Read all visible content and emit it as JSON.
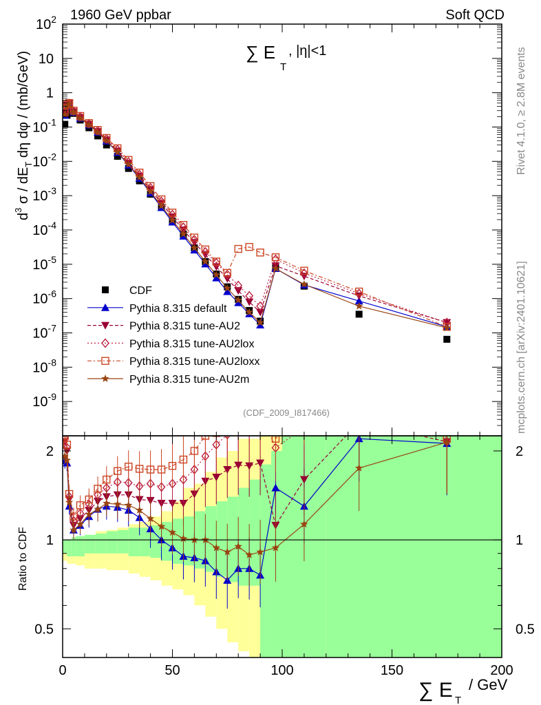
{
  "header": {
    "left": "1960 GeV ppbar",
    "right": "Soft QCD"
  },
  "side": {
    "rivet": "Rivet 4.1.0, ≥ 2.8M events",
    "mcplots": "mcplots.cern.ch [arXiv:2401.10621]"
  },
  "chart_data": {
    "type": "line",
    "title": "∑ E_T, |η|<1",
    "title_main": "∑ E",
    "title_sub": "T",
    "title_rest": ", |η|<1",
    "ylabel": "d³σ / dE_T dη dφ / (mb/GeV)",
    "ylabel_parts": [
      "d",
      "3",
      " σ / dE",
      "T",
      " dη dφ / (mb/GeV)"
    ],
    "xlabel_main": "∑ E",
    "xlabel_sub": "T",
    "xlabel_rest": "/ GeV",
    "ratio_ylabel": "Ratio to CDF",
    "analysis": "(CDF_2009_I817466)",
    "xlim": [
      0,
      200
    ],
    "ylim": [
      1e-10,
      100
    ],
    "ratio_ylim": [
      0.4,
      2.25
    ],
    "x_ticks": [
      "0",
      "50",
      "100",
      "150",
      "200"
    ],
    "y_ticks": [
      "10^2",
      "10",
      "1",
      "10^-1",
      "10^-2",
      "10^-3",
      "10^-4",
      "10^-5",
      "10^-6",
      "10^-7",
      "10^-8",
      "10^-9"
    ],
    "ratio_ticks": [
      "0.5",
      "1",
      "2"
    ],
    "colors": {
      "cdf": "#000000",
      "default": "#0000cc",
      "au2": "#990033",
      "au2lox": "#bb2244",
      "au2loxx": "#cc4422",
      "au2m": "#994411",
      "band_yellow": "#ffff99",
      "band_green": "#99ff99"
    },
    "series": [
      {
        "name": "CDF",
        "key": "cdf",
        "x": [
          1,
          2,
          3,
          5,
          8,
          12,
          16,
          20,
          25,
          30,
          35,
          40,
          45,
          50,
          55,
          60,
          65,
          70,
          75,
          80,
          85,
          90,
          97,
          110,
          135,
          175
        ],
        "y": [
          0.12,
          0.22,
          0.35,
          0.25,
          0.16,
          0.095,
          0.055,
          0.03,
          0.014,
          0.0062,
          0.0027,
          0.0011,
          0.00045,
          0.00018,
          7.5e-05,
          3e-05,
          1.2e-05,
          5.2e-06,
          2.2e-06,
          9.5e-07,
          4.5e-07,
          2.2e-07,
          8e-06,
          2.3e-06,
          3.5e-07,
          6.5e-08
        ]
      },
      {
        "name": "Pythia 8.315 default",
        "key": "default",
        "x": [
          1,
          2,
          3,
          5,
          8,
          12,
          16,
          20,
          25,
          30,
          35,
          40,
          45,
          50,
          55,
          60,
          65,
          70,
          75,
          80,
          85,
          90,
          97,
          110,
          135,
          175
        ],
        "y": [
          0.22,
          0.4,
          0.46,
          0.27,
          0.18,
          0.115,
          0.07,
          0.039,
          0.018,
          0.0078,
          0.0032,
          0.0012,
          0.00045,
          0.00017,
          6.6e-05,
          2.6e-05,
          1.02e-05,
          4e-06,
          1.6e-06,
          7.6e-07,
          3.6e-07,
          1.7e-07,
          7.5e-06,
          2.5e-06,
          8.5e-07,
          1.5e-07
        ]
      },
      {
        "name": "Pythia 8.315 tune-AU2",
        "key": "au2",
        "x": [
          1,
          2,
          3,
          5,
          8,
          12,
          16,
          20,
          25,
          30,
          35,
          40,
          45,
          50,
          55,
          60,
          65,
          70,
          75,
          80,
          85,
          90,
          97,
          110,
          135,
          175
        ],
        "y": [
          0.26,
          0.44,
          0.48,
          0.28,
          0.19,
          0.12,
          0.074,
          0.042,
          0.02,
          0.0088,
          0.0037,
          0.0015,
          0.0006,
          0.00024,
          0.0001,
          4.3e-05,
          1.9e-05,
          8.5e-06,
          3.8e-06,
          1.7e-06,
          8e-07,
          4e-07,
          9e-06,
          4.5e-06,
          1.2e-06,
          2e-07
        ]
      },
      {
        "name": "Pythia 8.315 tune-AU2lox",
        "key": "au2lox",
        "x": [
          1,
          2,
          3,
          5,
          8,
          12,
          16,
          20,
          25,
          30,
          35,
          40,
          45,
          50,
          55,
          60,
          65,
          70,
          75,
          80,
          85,
          90,
          97,
          110,
          135,
          175
        ],
        "y": [
          0.27,
          0.45,
          0.49,
          0.29,
          0.2,
          0.125,
          0.078,
          0.045,
          0.022,
          0.0097,
          0.0041,
          0.0017,
          0.00068,
          0.00028,
          0.00012,
          5.2e-05,
          2.3e-05,
          1.1e-05,
          5e-06,
          2.4e-06,
          1.2e-06,
          6e-07,
          1.4e-05,
          5.5e-06,
          1.4e-06,
          2e-07
        ]
      },
      {
        "name": "Pythia 8.315 tune-AU2loxx",
        "key": "au2loxx",
        "x": [
          1,
          2,
          3,
          5,
          8,
          12,
          16,
          20,
          25,
          30,
          35,
          40,
          45,
          50,
          55,
          60,
          65,
          70,
          75,
          80,
          85,
          90,
          97,
          110,
          135,
          175
        ],
        "y": [
          0.27,
          0.46,
          0.5,
          0.3,
          0.21,
          0.13,
          0.082,
          0.048,
          0.024,
          0.011,
          0.0047,
          0.0019,
          0.00078,
          0.00032,
          0.00014,
          6e-05,
          2.7e-05,
          1.2e-05,
          5.6e-06,
          2.8e-05,
          3.2e-05,
          2.2e-05,
          1.6e-05,
          6.5e-06,
          1.6e-06,
          1.5e-07
        ]
      },
      {
        "name": "Pythia 8.315 tune-AU2m",
        "key": "au2m",
        "x": [
          1,
          2,
          3,
          5,
          8,
          12,
          16,
          20,
          25,
          30,
          35,
          40,
          45,
          50,
          55,
          60,
          65,
          70,
          75,
          80,
          85,
          90,
          97,
          110,
          135,
          175
        ],
        "y": [
          0.23,
          0.41,
          0.47,
          0.27,
          0.18,
          0.116,
          0.07,
          0.04,
          0.0185,
          0.0081,
          0.0034,
          0.0013,
          0.0005,
          0.00019,
          7.6e-05,
          3e-05,
          1.2e-05,
          4.9e-06,
          2e-06,
          9e-07,
          4e-07,
          2e-07,
          7.5e-06,
          2.6e-06,
          6e-07,
          1.4e-07
        ]
      }
    ],
    "ratio": [
      {
        "key": "default",
        "x": [
          1,
          2,
          3,
          5,
          8,
          12,
          16,
          20,
          25,
          30,
          35,
          40,
          45,
          50,
          55,
          60,
          65,
          70,
          75,
          80,
          85,
          90,
          97,
          110,
          135,
          175
        ],
        "y": [
          1.85,
          1.82,
          1.3,
          1.08,
          1.12,
          1.2,
          1.27,
          1.3,
          1.29,
          1.26,
          1.19,
          1.09,
          1.0,
          0.94,
          0.88,
          0.87,
          0.85,
          0.78,
          0.73,
          0.8,
          0.8,
          0.76,
          1.5,
          1.3,
          2.2,
          2.12
        ]
      },
      {
        "key": "au2",
        "x": [
          1,
          2,
          3,
          5,
          8,
          12,
          16,
          20,
          25,
          30,
          35,
          40,
          45,
          50,
          55,
          60,
          65,
          70,
          75,
          80,
          85,
          90,
          97,
          110,
          135,
          175
        ],
        "y": [
          2.15,
          2.0,
          1.37,
          1.12,
          1.18,
          1.26,
          1.35,
          1.4,
          1.42,
          1.42,
          1.37,
          1.36,
          1.33,
          1.33,
          1.33,
          1.43,
          1.58,
          1.63,
          1.73,
          1.79,
          1.78,
          1.82,
          1.12,
          1.6,
          2.5,
          2.15
        ]
      },
      {
        "key": "au2lox",
        "x": [
          1,
          2,
          3,
          5,
          8,
          12,
          16,
          20,
          25,
          30,
          35,
          40,
          45,
          50,
          55,
          60,
          65,
          70,
          75,
          80,
          85,
          90,
          97,
          110,
          135,
          175
        ],
        "y": [
          2.2,
          2.05,
          1.4,
          1.16,
          1.23,
          1.32,
          1.42,
          1.5,
          1.57,
          1.56,
          1.52,
          1.55,
          1.51,
          1.55,
          1.6,
          1.73,
          1.92,
          2.1,
          2.27,
          2.52,
          2.67,
          2.73,
          2.05,
          2.4,
          4.0,
          2.15
        ]
      },
      {
        "key": "au2loxx",
        "x": [
          1,
          2,
          3,
          5,
          8,
          12,
          16,
          20,
          25,
          30,
          35,
          40,
          45,
          50,
          55,
          60,
          65,
          70,
          75,
          80,
          85,
          90,
          97,
          110,
          135,
          175
        ],
        "y": [
          2.25,
          2.1,
          1.43,
          1.2,
          1.31,
          1.37,
          1.49,
          1.6,
          1.71,
          1.77,
          1.74,
          1.73,
          1.73,
          1.78,
          1.87,
          2.0,
          2.25,
          2.3,
          2.55,
          2.95,
          3.1,
          3.1,
          2.2,
          2.8,
          4.5,
          2.2
        ]
      },
      {
        "key": "au2m",
        "x": [
          1,
          2,
          3,
          5,
          8,
          12,
          16,
          20,
          25,
          30,
          35,
          40,
          45,
          50,
          55,
          60,
          65,
          70,
          75,
          80,
          85,
          90,
          97,
          110,
          135,
          175
        ],
        "y": [
          1.92,
          1.86,
          1.34,
          1.08,
          1.13,
          1.22,
          1.27,
          1.33,
          1.32,
          1.31,
          1.26,
          1.18,
          1.11,
          1.06,
          1.01,
          1.0,
          1.0,
          0.94,
          0.91,
          0.95,
          0.89,
          0.91,
          0.94,
          1.13,
          1.75,
          2.14
        ]
      }
    ],
    "band": {
      "x_edges": [
        0,
        2,
        4,
        6,
        10,
        15,
        20,
        25,
        30,
        35,
        40,
        45,
        50,
        55,
        60,
        65,
        70,
        75,
        80,
        85,
        90,
        95,
        100,
        120,
        200
      ],
      "yellow_hi": [
        1.0,
        0.95,
        0.9,
        1.0,
        1.04,
        1.07,
        1.08,
        1.1,
        1.13,
        1.15,
        1.2,
        1.25,
        1.35,
        1.5,
        1.55,
        1.7,
        1.9,
        2.0,
        2.2,
        2.2,
        2.3,
        2.3,
        2.3,
        2.3
      ],
      "yellow_lo": [
        0.85,
        0.83,
        0.83,
        0.82,
        0.8,
        0.8,
        0.79,
        0.79,
        0.77,
        0.75,
        0.73,
        0.7,
        0.68,
        0.65,
        0.6,
        0.55,
        0.5,
        0.45,
        0.42,
        0.4,
        0.4,
        0.4,
        0.4,
        0.4
      ],
      "green_hi": [
        1.0,
        1.0,
        1.02,
        1.03,
        1.04,
        1.05,
        1.07,
        1.08,
        1.1,
        1.1,
        1.12,
        1.15,
        1.18,
        1.2,
        1.25,
        1.3,
        1.35,
        1.4,
        1.5,
        1.6,
        1.8,
        2.0,
        2.3,
        2.3
      ],
      "green_lo": [
        0.9,
        0.88,
        0.88,
        0.88,
        0.9,
        0.9,
        0.9,
        0.9,
        0.88,
        0.88,
        0.87,
        0.85,
        0.83,
        0.82,
        0.8,
        0.78,
        0.75,
        0.72,
        0.7,
        0.7,
        0.4,
        0.4,
        0.4,
        0.4
      ]
    }
  }
}
